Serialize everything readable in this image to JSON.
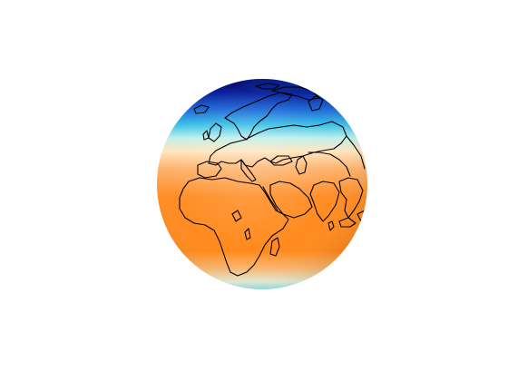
{
  "figure": {
    "background": "#ffffff",
    "projection": "orthographic",
    "center": "Africa / Europe",
    "coastline_color": "#000000"
  },
  "colormap": {
    "stops": [
      "#000066",
      "#1f5fd6",
      "#44c8e6",
      "#c9f2ec",
      "#ffe4b8",
      "#fca355",
      "#ff8a1c"
    ]
  }
}
